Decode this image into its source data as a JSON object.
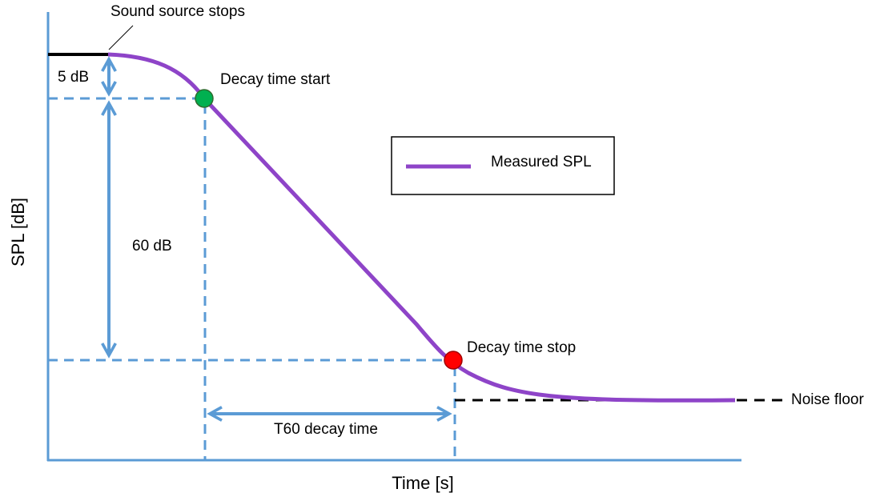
{
  "axes": {
    "x_label": "Time [s]",
    "y_label": "SPL [dB]"
  },
  "annotations": {
    "source_stops": "Sound source stops",
    "decay_start": "Decay time start",
    "decay_stop": "Decay time stop",
    "noise_floor": "Noise floor",
    "five_db": "5 dB",
    "sixty_db": "60 dB",
    "t60": "T60 decay time"
  },
  "legend": {
    "label": "Measured SPL"
  }
}
